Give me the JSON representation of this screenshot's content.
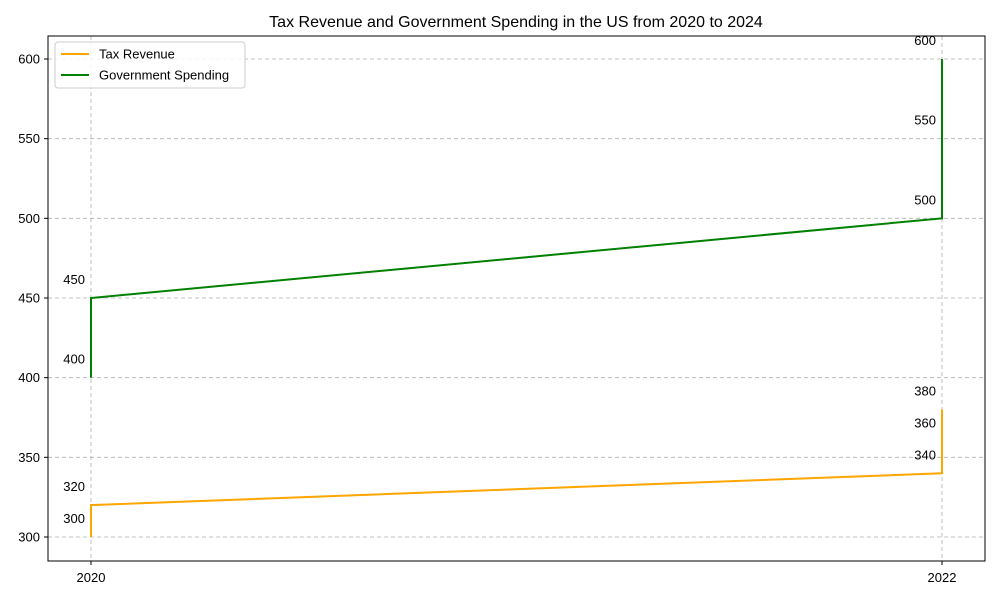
{
  "chart_data": {
    "type": "line",
    "title": "Tax Revenue and Government Spending in the US from 2020 to 2024",
    "xlabel": "",
    "ylabel": "",
    "x_ticks": [
      "2020",
      "2022"
    ],
    "y_ticks": [
      300,
      350,
      400,
      450,
      500,
      550,
      600
    ],
    "ylim": [
      285,
      615
    ],
    "grid": true,
    "legend_position": "top-left",
    "series": [
      {
        "name": "Tax Revenue",
        "color": "#FFA500",
        "points": [
          {
            "x": "2020",
            "y": 300
          },
          {
            "x": "2020",
            "y": 320
          },
          {
            "x": "2022",
            "y": 340
          },
          {
            "x": "2022",
            "y": 360
          },
          {
            "x": "2022",
            "y": 380
          }
        ],
        "labels": [
          {
            "x": "2020",
            "y": 300,
            "text": "300"
          },
          {
            "x": "2020",
            "y": 320,
            "text": "320"
          },
          {
            "x": "2022",
            "y": 340,
            "text": "340"
          },
          {
            "x": "2022",
            "y": 360,
            "text": "360"
          },
          {
            "x": "2022",
            "y": 380,
            "text": "380"
          }
        ]
      },
      {
        "name": "Government Spending",
        "color": "#008000",
        "points": [
          {
            "x": "2020",
            "y": 400
          },
          {
            "x": "2020",
            "y": 450
          },
          {
            "x": "2022",
            "y": 500
          },
          {
            "x": "2022",
            "y": 550
          },
          {
            "x": "2022",
            "y": 600
          }
        ],
        "labels": [
          {
            "x": "2020",
            "y": 400,
            "text": "400"
          },
          {
            "x": "2020",
            "y": 450,
            "text": "450"
          },
          {
            "x": "2022",
            "y": 500,
            "text": "500"
          },
          {
            "x": "2022",
            "y": 550,
            "text": "550"
          },
          {
            "x": "2022",
            "y": 600,
            "text": "600"
          }
        ]
      }
    ]
  }
}
